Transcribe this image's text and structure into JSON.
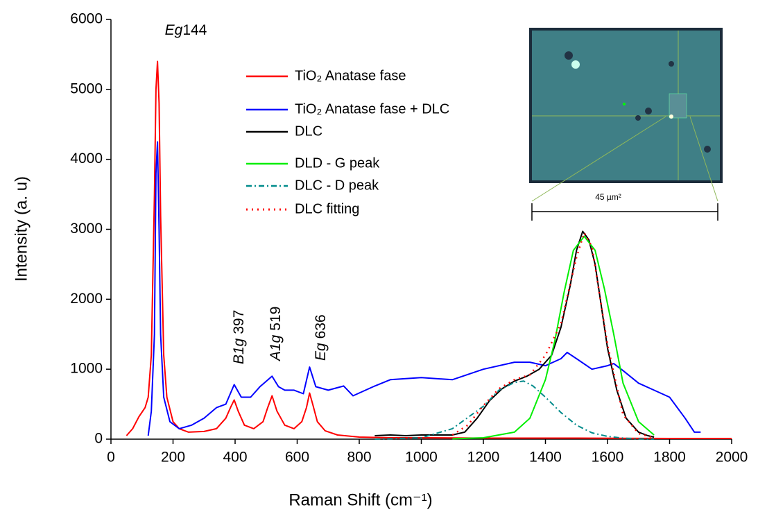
{
  "chart_data": {
    "type": "line",
    "xlabel": "Raman Shift (cm⁻¹)",
    "ylabel": "Intensity (a. u)",
    "xlim": [
      0,
      2000
    ],
    "ylim": [
      0,
      6000
    ],
    "xticks": [
      0,
      200,
      400,
      600,
      800,
      1000,
      1200,
      1400,
      1600,
      1800,
      2000
    ],
    "yticks": [
      0,
      1000,
      2000,
      3000,
      4000,
      5000,
      6000
    ],
    "legend": "top-center",
    "annotations": [
      {
        "italic": "Eg",
        "text": "144"
      },
      {
        "italic": "B1g",
        "text": "397"
      },
      {
        "italic": "A1g",
        "text": "519"
      },
      {
        "italic": "Eg",
        "text": "636"
      }
    ],
    "inset_label": "45 µm²",
    "series": [
      {
        "name": "TiO₂ Anatase fase",
        "color": "#ff0000",
        "dash": "solid",
        "x": [
          50,
          70,
          90,
          110,
          120,
          130,
          140,
          145,
          150,
          155,
          160,
          170,
          180,
          200,
          220,
          250,
          300,
          340,
          370,
          385,
          397,
          410,
          430,
          460,
          490,
          505,
          519,
          535,
          560,
          590,
          615,
          630,
          640,
          650,
          665,
          690,
          730,
          800,
          900,
          1000,
          1200,
          1500,
          1800,
          2000
        ],
        "values": [
          50,
          150,
          320,
          450,
          600,
          1200,
          3500,
          5000,
          5400,
          4800,
          3200,
          1200,
          600,
          250,
          150,
          100,
          110,
          150,
          300,
          450,
          560,
          400,
          200,
          150,
          250,
          450,
          620,
          400,
          200,
          150,
          250,
          450,
          660,
          500,
          250,
          120,
          60,
          30,
          20,
          20,
          15,
          15,
          10,
          10
        ]
      },
      {
        "name": "TiO₂ Anatase fase + DLC",
        "color": "#0000ff",
        "dash": "solid",
        "x": [
          120,
          130,
          140,
          145,
          150,
          155,
          160,
          170,
          190,
          220,
          260,
          300,
          340,
          370,
          397,
          420,
          450,
          480,
          519,
          540,
          560,
          590,
          620,
          640,
          660,
          700,
          750,
          780,
          850,
          900,
          1000,
          1100,
          1200,
          1300,
          1350,
          1400,
          1450,
          1470,
          1500,
          1550,
          1600,
          1620,
          1650,
          1700,
          1750,
          1800,
          1850,
          1880,
          1900
        ],
        "values": [
          50,
          400,
          1500,
          3800,
          4250,
          3000,
          1500,
          600,
          250,
          150,
          200,
          300,
          450,
          500,
          780,
          600,
          600,
          750,
          900,
          750,
          700,
          700,
          650,
          1030,
          750,
          700,
          760,
          620,
          760,
          850,
          880,
          850,
          1000,
          1100,
          1100,
          1050,
          1150,
          1240,
          1150,
          1000,
          1050,
          1080,
          980,
          800,
          700,
          600,
          300,
          100,
          100
        ]
      },
      {
        "name": "DLC",
        "color": "#000000",
        "dash": "solid",
        "x": [
          850,
          900,
          950,
          1000,
          1050,
          1100,
          1140,
          1180,
          1220,
          1260,
          1300,
          1340,
          1380,
          1420,
          1450,
          1480,
          1500,
          1520,
          1540,
          1560,
          1580,
          1600,
          1630,
          1660,
          1700,
          1730,
          1750
        ],
        "values": [
          50,
          60,
          50,
          60,
          60,
          60,
          100,
          300,
          550,
          720,
          830,
          900,
          1000,
          1200,
          1600,
          2200,
          2700,
          2970,
          2850,
          2500,
          1900,
          1300,
          700,
          300,
          100,
          50,
          30
        ]
      },
      {
        "name": "DLD - G peak",
        "color": "#00ee00",
        "dash": "solid",
        "x": [
          1100,
          1200,
          1300,
          1350,
          1400,
          1430,
          1460,
          1490,
          1525,
          1560,
          1590,
          1620,
          1650,
          1700,
          1750
        ],
        "values": [
          5,
          20,
          100,
          300,
          850,
          1400,
          2100,
          2700,
          2900,
          2700,
          2150,
          1500,
          800,
          250,
          60
        ]
      },
      {
        "name": "DLC - D peak",
        "color": "#008b8b",
        "dash": "dashdot",
        "x": [
          850,
          1000,
          1100,
          1200,
          1250,
          1300,
          1330,
          1360,
          1400,
          1450,
          1500,
          1550,
          1600,
          1650,
          1700,
          1750
        ],
        "values": [
          0,
          20,
          150,
          470,
          700,
          810,
          830,
          760,
          600,
          380,
          200,
          90,
          40,
          15,
          5,
          0
        ]
      },
      {
        "name": "DLC fitting",
        "color": "#ff0000",
        "dash": "dotted",
        "x": [
          1100,
          1150,
          1200,
          1250,
          1300,
          1350,
          1400,
          1450,
          1500,
          1525,
          1550,
          1600,
          1650,
          1700,
          1750
        ],
        "values": [
          60,
          200,
          480,
          720,
          850,
          920,
          1200,
          1650,
          2600,
          2950,
          2750,
          1350,
          350,
          80,
          20
        ]
      }
    ]
  }
}
